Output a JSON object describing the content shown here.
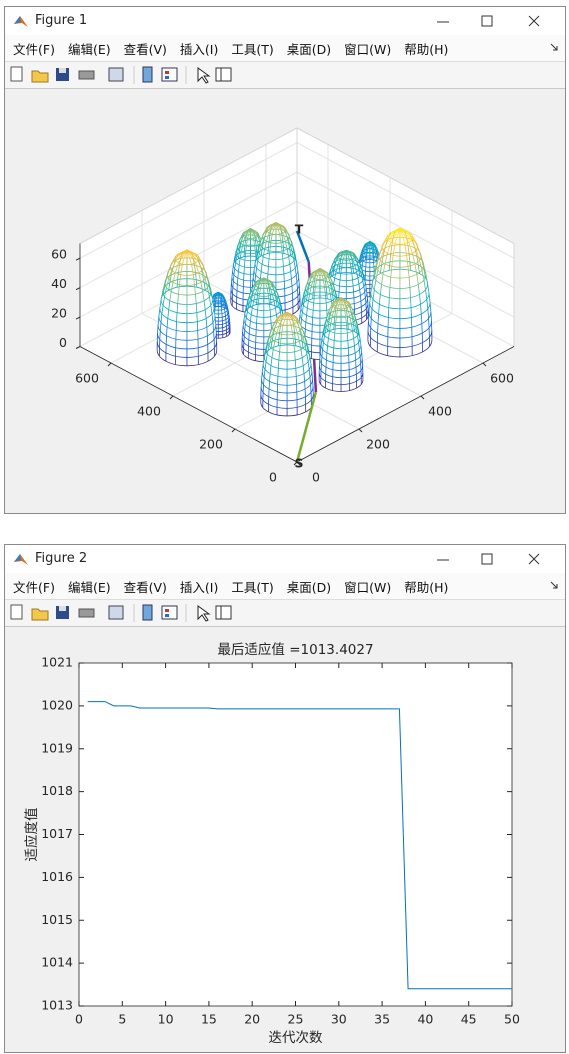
{
  "windows": [
    {
      "title": "Figure 1",
      "menu": [
        "文件(F)",
        "编辑(E)",
        "查看(V)",
        "插入(I)",
        "工具(T)",
        "桌面(D)",
        "窗口(W)",
        "帮助(H)"
      ]
    },
    {
      "title": "Figure 2",
      "menu": [
        "文件(F)",
        "编辑(E)",
        "查看(V)",
        "插入(I)",
        "工具(T)",
        "桌面(D)",
        "窗口(W)",
        "帮助(H)"
      ]
    }
  ],
  "chart_data": [
    {
      "type": "surface3d",
      "colormap": "parula",
      "grid": true,
      "xlim": [
        0,
        700
      ],
      "ylim": [
        0,
        700
      ],
      "zlim": [
        0,
        70
      ],
      "xticks": [
        0,
        200,
        400,
        600
      ],
      "yticks": [
        0,
        200,
        400,
        600
      ],
      "zticks": [
        0,
        20,
        40,
        60
      ],
      "peaks": {
        "x": [
          162,
          267,
          442,
          410,
          286,
          383,
          525,
          639,
          536,
          166,
          320
        ],
        "y": [
          517,
          521,
          510,
          560,
          393,
          309,
          366,
          404,
          204,
          198,
          178
        ],
        "height": [
          68,
          27,
          56,
          50,
          49,
          54,
          44,
          33,
          76,
          61,
          56
        ],
        "radius": [
          68,
          27,
          55,
          45,
          50,
          50,
          50,
          30,
          73,
          60,
          50
        ]
      },
      "path": {
        "x": [
          0,
          242,
          625,
          700
        ],
        "y": [
          0,
          181,
          587,
          700
        ],
        "colors": [
          "#77ac30",
          "#7e2f8e",
          "#0072bd"
        ]
      },
      "start_label": "S",
      "end_label": "T"
    },
    {
      "type": "line",
      "title": "最后适应值 =1013.4027",
      "xlabel": "迭代次数",
      "ylabel": "适应度值",
      "color": "#0072bd",
      "xlim": [
        0,
        50
      ],
      "ylim": [
        1013,
        1021
      ],
      "xticks": [
        0,
        5,
        10,
        15,
        20,
        25,
        30,
        35,
        40,
        45,
        50
      ],
      "yticks": [
        1013,
        1014,
        1015,
        1016,
        1017,
        1018,
        1019,
        1020,
        1021
      ],
      "x": [
        1,
        2,
        3,
        4,
        5,
        6,
        7,
        8,
        9,
        10,
        11,
        12,
        13,
        14,
        15,
        16,
        17,
        18,
        19,
        20,
        21,
        22,
        23,
        24,
        25,
        26,
        27,
        28,
        29,
        30,
        31,
        32,
        33,
        34,
        35,
        36,
        37,
        38,
        39,
        40,
        41,
        42,
        43,
        44,
        45,
        46,
        47,
        48,
        49,
        50
      ],
      "values": [
        1020.1,
        1020.1,
        1020.1,
        1020.0,
        1020.0,
        1020.0,
        1019.95,
        1019.95,
        1019.95,
        1019.95,
        1019.95,
        1019.95,
        1019.95,
        1019.95,
        1019.95,
        1019.93,
        1019.93,
        1019.93,
        1019.93,
        1019.93,
        1019.93,
        1019.93,
        1019.93,
        1019.93,
        1019.93,
        1019.93,
        1019.93,
        1019.93,
        1019.93,
        1019.93,
        1019.93,
        1019.93,
        1019.93,
        1019.93,
        1019.93,
        1019.93,
        1019.93,
        1013.4027,
        1013.4027,
        1013.4027,
        1013.4027,
        1013.4027,
        1013.4027,
        1013.4027,
        1013.4027,
        1013.4027,
        1013.4027,
        1013.4027,
        1013.4027,
        1013.4027
      ]
    }
  ]
}
